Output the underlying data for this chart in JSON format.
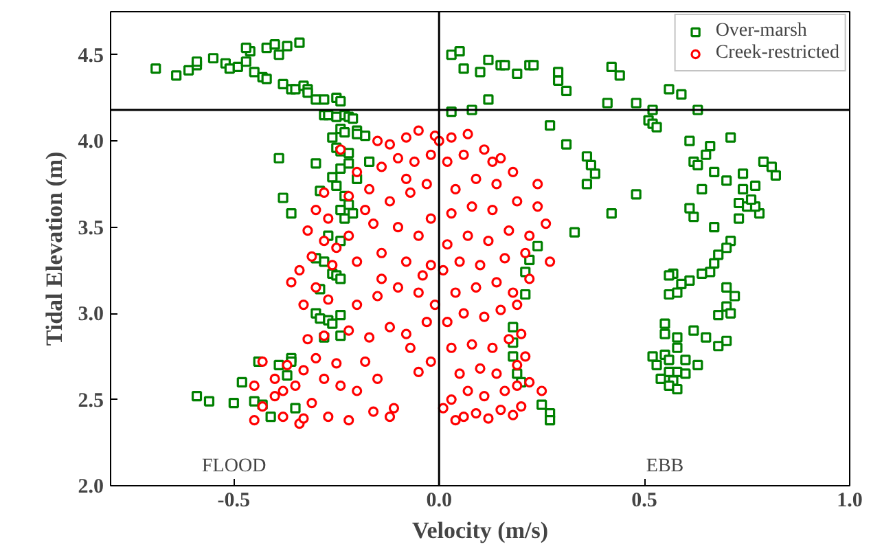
{
  "chart_data": {
    "type": "scatter",
    "xlabel": "Velocity (m/s)",
    "ylabel": "Tidal Elevation (m)",
    "xlim": [
      -0.8,
      1.0
    ],
    "xticks": [
      {
        "value": -0.5,
        "label": "-0.5"
      },
      {
        "value": 0,
        "label": "0.0"
      },
      {
        "value": 0.5,
        "label": "0.5"
      },
      {
        "value": 1,
        "label": "1.0"
      }
    ],
    "ylim": [
      2.0,
      4.75
    ],
    "yticks": [
      {
        "value": 2,
        "label": "2.0"
      },
      2.5,
      {
        "value": 3,
        "label": "3.0"
      },
      3.5,
      {
        "value": 4,
        "label": "4.0"
      },
      4.5
    ],
    "grid": false,
    "legend": "top right",
    "ref_lines": [
      {
        "axis": "y",
        "value": 4.18,
        "color": "#000000"
      },
      {
        "axis": "x",
        "value": 0,
        "color": "#000000"
      }
    ],
    "annotations": [
      "FLOOD",
      "EBB"
    ],
    "series": [
      {
        "name": "Over-marsh",
        "color": "#008000",
        "marker": "square",
        "x": [
          -0.69,
          -0.64,
          -0.61,
          -0.59,
          -0.59,
          -0.55,
          -0.52,
          -0.51,
          -0.49,
          -0.47,
          -0.46,
          -0.45,
          -0.43,
          -0.42,
          -0.47,
          -0.42,
          -0.4,
          -0.39,
          -0.37,
          -0.34,
          -0.38,
          -0.36,
          -0.35,
          -0.33,
          -0.32,
          -0.32,
          -0.3,
          -0.28,
          -0.25,
          -0.24,
          -0.28,
          -0.27,
          -0.25,
          -0.23,
          -0.22,
          -0.21,
          -0.2,
          -0.18,
          -0.24,
          -0.23,
          -0.26,
          -0.2,
          -0.25,
          -0.24,
          -0.22,
          -0.17,
          -0.24,
          -0.22,
          -0.2,
          -0.26,
          -0.25,
          -0.23,
          -0.22,
          -0.24,
          -0.23,
          -0.21,
          -0.3,
          -0.29,
          -0.27,
          -0.24,
          -0.28,
          -0.26,
          -0.25,
          -0.24,
          -0.29,
          -0.3,
          -0.29,
          -0.27,
          -0.26,
          -0.28,
          -0.24,
          -0.36,
          -0.36,
          -0.39,
          -0.37,
          -0.45,
          -0.43,
          -0.41,
          -0.35,
          -0.24,
          -0.39,
          -0.38,
          -0.36,
          -0.3,
          -0.59,
          -0.56,
          -0.5,
          -0.48,
          -0.44,
          0.03,
          0.05,
          0.06,
          0.1,
          0.12,
          0.15,
          0.16,
          0.19,
          0.22,
          0.23,
          0.29,
          0.29,
          0.31,
          0.12,
          0.08,
          0.03,
          0.42,
          0.44,
          0.56,
          0.59,
          0.63,
          0.41,
          0.48,
          0.52,
          0.27,
          0.31,
          0.36,
          0.37,
          0.38,
          0.36,
          0.48,
          0.42,
          0.33,
          0.24,
          0.22,
          0.21,
          0.21,
          0.18,
          0.18,
          0.18,
          0.19,
          0.2,
          0.25,
          0.27,
          0.27,
          0.51,
          0.52,
          0.53,
          0.61,
          0.66,
          0.71,
          0.65,
          0.62,
          0.63,
          0.67,
          0.7,
          0.74,
          0.77,
          0.74,
          0.64,
          0.73,
          0.75,
          0.73,
          0.61,
          0.62,
          0.67,
          0.71,
          0.7,
          0.68,
          0.67,
          0.66,
          0.64,
          0.61,
          0.59,
          0.57,
          0.56,
          0.56,
          0.58,
          0.7,
          0.72,
          0.7,
          0.71,
          0.68,
          0.62,
          0.65,
          0.7,
          0.68,
          0.55,
          0.55,
          0.58,
          0.58,
          0.55,
          0.52,
          0.56,
          0.6,
          0.63,
          0.53,
          0.58,
          0.56,
          0.6,
          0.54,
          0.57,
          0.56,
          0.58,
          0.79,
          0.81,
          0.82,
          0.78,
          0.77,
          0.76
        ],
        "values": [
          4.42,
          4.38,
          4.41,
          4.44,
          4.46,
          4.48,
          4.45,
          4.42,
          4.43,
          4.46,
          4.52,
          4.4,
          4.37,
          4.36,
          4.54,
          4.54,
          4.56,
          4.5,
          4.55,
          4.57,
          4.33,
          4.3,
          4.3,
          4.32,
          4.3,
          4.28,
          4.24,
          4.24,
          4.25,
          4.23,
          4.15,
          4.15,
          4.14,
          4.15,
          4.14,
          4.13,
          4.06,
          4.03,
          4.07,
          4.05,
          4.02,
          4.04,
          3.96,
          3.94,
          3.93,
          3.88,
          3.84,
          3.87,
          3.78,
          3.79,
          3.74,
          3.68,
          3.63,
          3.6,
          3.55,
          3.58,
          3.87,
          3.71,
          3.45,
          3.42,
          3.3,
          3.23,
          3.22,
          3.2,
          3.14,
          3.0,
          2.97,
          2.96,
          2.94,
          2.86,
          2.99,
          2.74,
          2.72,
          2.7,
          2.64,
          2.49,
          2.47,
          2.4,
          2.45,
          2.87,
          3.9,
          3.67,
          3.58,
          3.32,
          2.52,
          2.49,
          2.48,
          2.6,
          2.72,
          4.5,
          4.52,
          4.42,
          4.4,
          4.47,
          4.44,
          4.44,
          4.39,
          4.44,
          4.44,
          4.4,
          4.35,
          4.29,
          4.24,
          4.18,
          4.17,
          4.43,
          4.38,
          4.3,
          4.27,
          4.18,
          4.22,
          4.22,
          4.18,
          4.09,
          3.98,
          3.91,
          3.86,
          3.81,
          3.75,
          3.69,
          3.58,
          3.47,
          3.39,
          3.31,
          3.24,
          3.11,
          2.92,
          2.83,
          2.75,
          2.65,
          2.6,
          2.47,
          2.42,
          2.38,
          4.12,
          4.1,
          4.08,
          4.0,
          3.97,
          4.02,
          3.92,
          3.88,
          3.86,
          3.82,
          3.77,
          3.81,
          3.74,
          3.72,
          3.72,
          3.64,
          3.62,
          3.55,
          3.61,
          3.56,
          3.5,
          3.42,
          3.38,
          3.34,
          3.29,
          3.24,
          3.23,
          3.19,
          3.17,
          3.23,
          3.22,
          3.11,
          3.12,
          3.15,
          3.1,
          3.04,
          3.0,
          2.99,
          2.9,
          2.86,
          2.84,
          2.81,
          2.94,
          2.88,
          2.86,
          2.8,
          2.76,
          2.75,
          2.73,
          2.73,
          2.7,
          2.7,
          2.66,
          2.66,
          2.65,
          2.62,
          2.61,
          2.58,
          2.56,
          3.88,
          3.85,
          3.8,
          3.58,
          3.62,
          3.66
        ]
      },
      {
        "name": "Creek-restricted",
        "color": "#ff0000",
        "marker": "circle",
        "x": [
          -0.45,
          -0.43,
          -0.38,
          -0.34,
          -0.33,
          -0.4,
          -0.38,
          -0.35,
          -0.31,
          -0.27,
          -0.22,
          -0.16,
          -0.12,
          -0.11,
          -0.2,
          -0.24,
          -0.28,
          -0.33,
          -0.37,
          -0.43,
          -0.45,
          -0.3,
          -0.25,
          -0.15,
          -0.05,
          -0.02,
          -0.28,
          -0.32,
          -0.22,
          -0.17,
          -0.12,
          -0.08,
          -0.03,
          -0.33,
          -0.3,
          -0.27,
          -0.2,
          -0.15,
          -0.1,
          -0.05,
          -0.01,
          -0.34,
          -0.31,
          -0.26,
          -0.2,
          -0.14,
          -0.08,
          -0.02,
          -0.32,
          -0.27,
          -0.22,
          -0.16,
          -0.1,
          -0.05,
          -0.02,
          -0.28,
          -0.22,
          -0.17,
          -0.12,
          -0.07,
          -0.03,
          -0.2,
          -0.14,
          -0.1,
          -0.06,
          -0.02,
          -0.12,
          -0.08,
          -0.05,
          -0.01,
          -0.18,
          -0.25,
          -0.36,
          -0.3,
          -0.24,
          -0.15,
          -0.08,
          -0.04,
          -0.18,
          -0.07,
          -0.4,
          -0.14,
          -0.28,
          0.04,
          0.06,
          0.09,
          0.12,
          0.15,
          0.18,
          0.2,
          0.03,
          0.07,
          0.11,
          0.16,
          0.19,
          0.22,
          0.05,
          0.1,
          0.14,
          0.19,
          0.21,
          0.03,
          0.08,
          0.13,
          0.17,
          0.2,
          0.02,
          0.06,
          0.11,
          0.15,
          0.19,
          0.04,
          0.09,
          0.14,
          0.18,
          0.22,
          0.01,
          0.05,
          0.1,
          0.16,
          0.21,
          0.27,
          0.02,
          0.07,
          0.12,
          0.17,
          0.22,
          0.26,
          0.03,
          0.08,
          0.13,
          0.19,
          0.24,
          0.04,
          0.09,
          0.14,
          0.18,
          0.02,
          0.06,
          0.11,
          0.15,
          0.03,
          0.07,
          0.0,
          0.25,
          0.24,
          0.01,
          0.13
        ],
        "values": [
          2.38,
          2.46,
          2.4,
          2.36,
          2.39,
          2.52,
          2.55,
          2.58,
          2.48,
          2.4,
          2.38,
          2.43,
          2.4,
          2.45,
          2.55,
          2.58,
          2.62,
          2.67,
          2.7,
          2.72,
          2.58,
          2.74,
          2.71,
          2.62,
          2.66,
          2.72,
          2.87,
          2.85,
          2.9,
          2.86,
          2.92,
          2.88,
          2.95,
          3.05,
          3.15,
          3.08,
          3.05,
          3.1,
          3.15,
          3.12,
          3.05,
          3.25,
          3.33,
          3.28,
          3.3,
          3.35,
          3.3,
          3.28,
          3.48,
          3.55,
          3.45,
          3.52,
          3.5,
          3.45,
          3.55,
          3.7,
          3.68,
          3.72,
          3.65,
          3.7,
          3.75,
          3.82,
          3.85,
          3.9,
          3.88,
          3.92,
          3.98,
          4.02,
          4.06,
          4.03,
          3.6,
          3.38,
          3.18,
          3.6,
          3.95,
          4.0,
          3.78,
          3.22,
          2.72,
          2.8,
          2.62,
          3.2,
          3.42,
          2.38,
          2.4,
          2.42,
          2.39,
          2.44,
          2.41,
          2.46,
          2.5,
          2.55,
          2.52,
          2.55,
          2.58,
          2.6,
          2.65,
          2.68,
          2.65,
          2.7,
          2.75,
          2.8,
          2.82,
          2.8,
          2.85,
          2.88,
          2.95,
          3.0,
          2.98,
          3.02,
          3.05,
          3.12,
          3.15,
          3.18,
          3.12,
          3.2,
          3.25,
          3.3,
          3.28,
          3.32,
          3.35,
          3.3,
          3.4,
          3.45,
          3.42,
          3.48,
          3.45,
          3.52,
          3.58,
          3.62,
          3.6,
          3.65,
          3.62,
          3.72,
          3.78,
          3.75,
          3.82,
          3.88,
          3.92,
          3.95,
          3.9,
          4.02,
          4.04,
          4.0,
          2.55,
          3.75,
          2.45,
          3.88
        ]
      }
    ]
  }
}
